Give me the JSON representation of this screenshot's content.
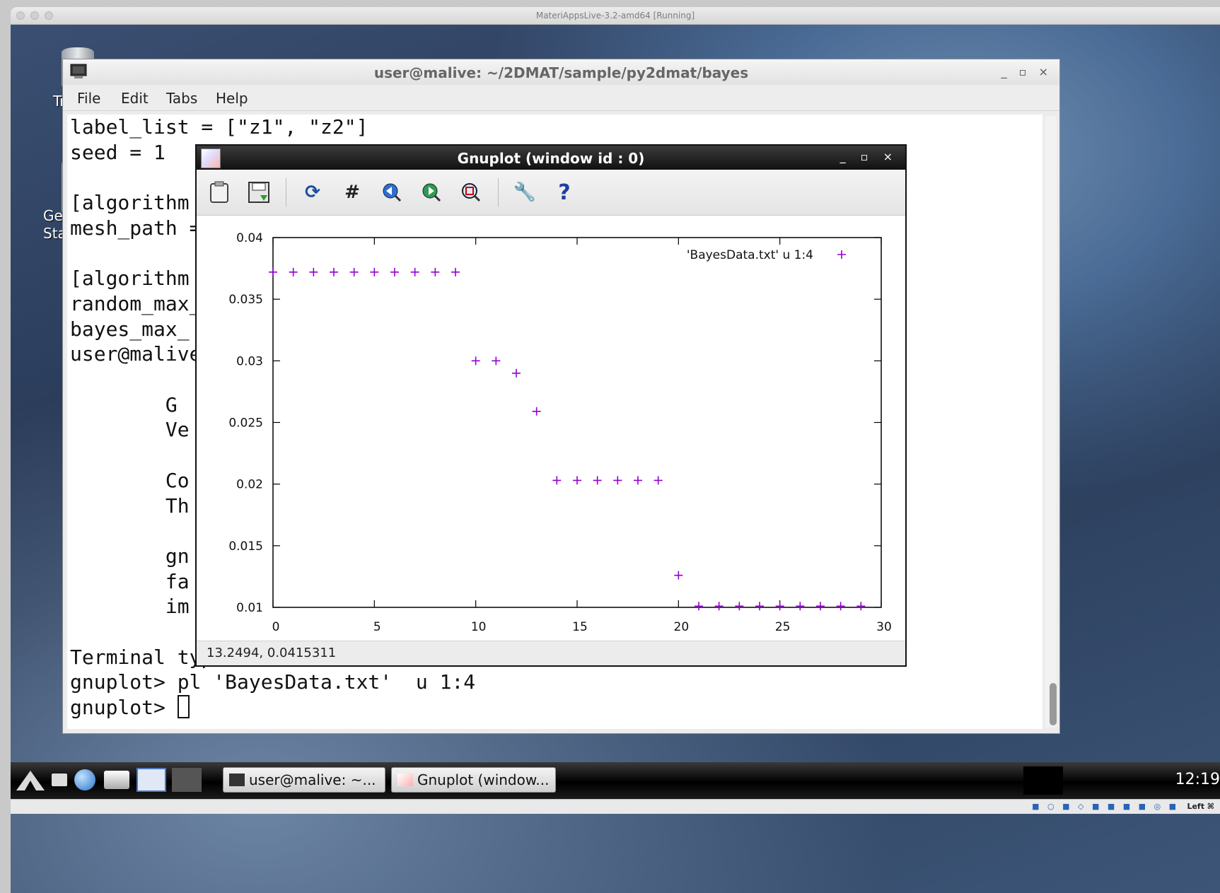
{
  "host": {
    "title": "MateriAppsLive-3.2-amd64 [Running]"
  },
  "desktop": {
    "icon_labels": [
      "Tr",
      "Ge",
      "Sta"
    ]
  },
  "terminal": {
    "title": "user@malive: ~/2DMAT/sample/py2dmat/bayes",
    "window_buttons": "_ ▫ ×",
    "menu": [
      "File",
      "Edit",
      "Tabs",
      "Help"
    ],
    "lines": [
      "label_list = [\"z1\", \"z2\"]",
      "seed = 1",
      "",
      "[algorithm",
      "mesh_path =",
      "",
      "[algorithm",
      "random_max_",
      "bayes_max_",
      "user@malive",
      "",
      "        G ",
      "        Ve",
      "",
      "        Co",
      "        Th",
      "",
      "        gn",
      "        fa",
      "        im",
      "",
      "Terminal type is now 'wxt'",
      "gnuplot> pl 'BayesData.txt'  u 1:4",
      "gnuplot> "
    ]
  },
  "gnuplot": {
    "title": "Gnuplot (window id : 0)",
    "window_buttons": "_ ▫ ×",
    "toolbar": [
      "copy-to-clipboard-icon",
      "save-icon",
      "replot-icon",
      "grid-icon",
      "previous-zoom-icon",
      "next-zoom-icon",
      "autoscale-icon",
      "config-icon",
      "help-icon"
    ],
    "status": "13.2494,  0.0415311",
    "colors": {
      "points": "#9400d3"
    }
  },
  "chart_data": {
    "type": "scatter",
    "title": "",
    "xlabel": "",
    "ylabel": "",
    "xlim": [
      0,
      30
    ],
    "ylim": [
      0.01,
      0.04
    ],
    "x_ticks": [
      "0",
      "5",
      "10",
      "15",
      "20",
      "25",
      "30"
    ],
    "y_ticks": [
      "0.01",
      "0.015",
      "0.02",
      "0.025",
      "0.03",
      "0.035",
      "0.04"
    ],
    "grid": false,
    "legend": "top-right",
    "series": [
      {
        "name": "'BayesData.txt'  u 1:4",
        "marker": "+",
        "color": "#9400d3",
        "x": [
          0,
          1,
          2,
          3,
          4,
          5,
          6,
          7,
          8,
          9,
          10,
          11,
          12,
          13,
          14,
          15,
          16,
          17,
          18,
          19,
          20,
          21,
          22,
          23,
          24,
          25,
          26,
          27,
          28,
          29
        ],
        "y": [
          0.0372,
          0.0372,
          0.0372,
          0.0372,
          0.0372,
          0.0372,
          0.0372,
          0.0372,
          0.0372,
          0.0372,
          0.03,
          0.03,
          0.029,
          0.0259,
          0.0203,
          0.0203,
          0.0203,
          0.0203,
          0.0203,
          0.0203,
          0.0126,
          0.0101,
          0.0101,
          0.0101,
          0.0101,
          0.0101,
          0.0101,
          0.0101,
          0.0101,
          0.0101
        ]
      }
    ]
  },
  "taskbar": {
    "items": [
      {
        "label": "user@malive: ~..."
      },
      {
        "label": "Gnuplot (window..."
      }
    ],
    "clock": "12:19",
    "host_key": "Left ⌘"
  }
}
